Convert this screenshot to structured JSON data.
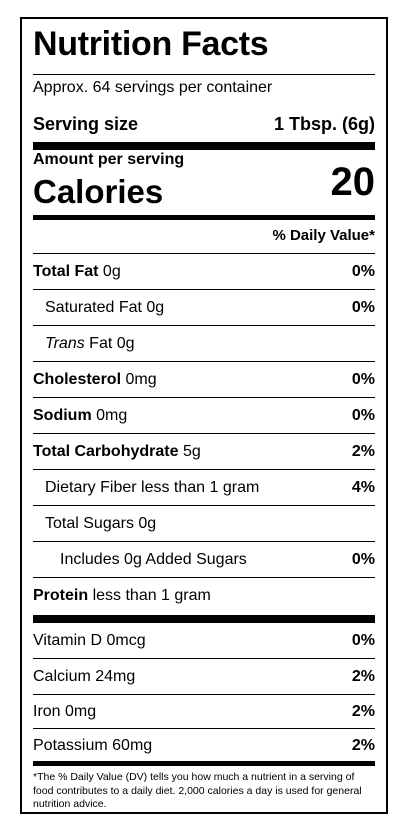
{
  "title": "Nutrition Facts",
  "servings_per_container": "Approx. 64 servings per container",
  "serving_size": {
    "label": "Serving size",
    "value": "1 Tbsp. (6g)"
  },
  "calories": {
    "amount_label": "Amount per serving",
    "label": "Calories",
    "value": "20"
  },
  "dv_header": "% Daily Value*",
  "nutrients": [
    {
      "name": "Total Fat",
      "amount": " 0g",
      "dv": "0%"
    },
    {
      "name": "Saturated Fat 0g",
      "dv": "0%"
    },
    {
      "name_italic": "Trans",
      "name_rest": " Fat 0g"
    },
    {
      "name": "Cholesterol",
      "amount": " 0mg",
      "dv": "0%"
    },
    {
      "name": "Sodium",
      "amount": " 0mg",
      "dv": "0%"
    },
    {
      "name": "Total Carbohydrate",
      "amount": " 5g",
      "dv": "2%"
    },
    {
      "name": "Dietary Fiber less than 1 gram",
      "dv": "4%"
    },
    {
      "name": "Total Sugars 0g"
    },
    {
      "name": "Includes 0g Added Sugars",
      "dv": "0%"
    },
    {
      "name": "Protein",
      "amount": " less than 1 gram"
    }
  ],
  "vitamins": [
    {
      "name": "Vitamin D 0mcg",
      "dv": "0%"
    },
    {
      "name": "Calcium 24mg",
      "dv": "2%"
    },
    {
      "name": "Iron 0mg",
      "dv": "2%"
    },
    {
      "name": "Potassium 60mg",
      "dv": "2%"
    }
  ],
  "footnote": "*The % Daily Value (DV) tells you how much a nutrient in a serving of food contributes to a daily diet. 2,000 calories a day is used for general nutrition advice."
}
